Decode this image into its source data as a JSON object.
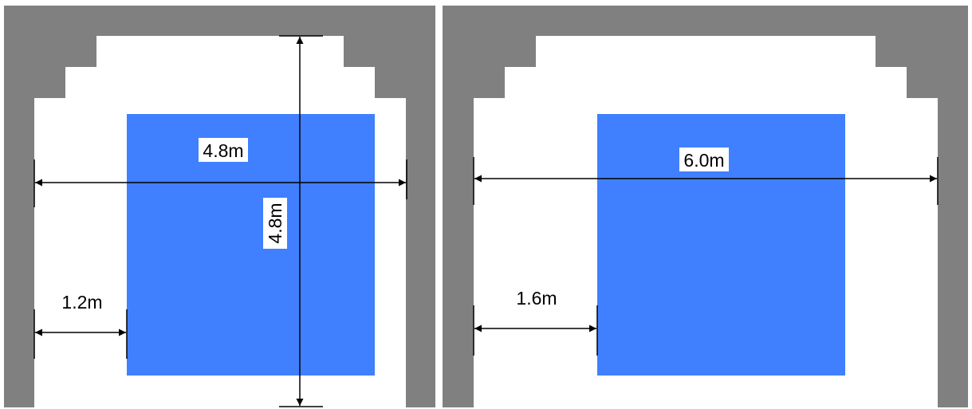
{
  "colors": {
    "wall": "#808080",
    "opening": "#ffffff",
    "box": "#4080ff",
    "dimension_line": "#000000"
  },
  "panels": [
    {
      "id": "left",
      "labels": {
        "width": "4.8m",
        "height": "4.8m",
        "side_offset": "1.2m"
      }
    },
    {
      "id": "right",
      "labels": {
        "width": "6.0m",
        "side_offset": "1.6m"
      }
    }
  ]
}
